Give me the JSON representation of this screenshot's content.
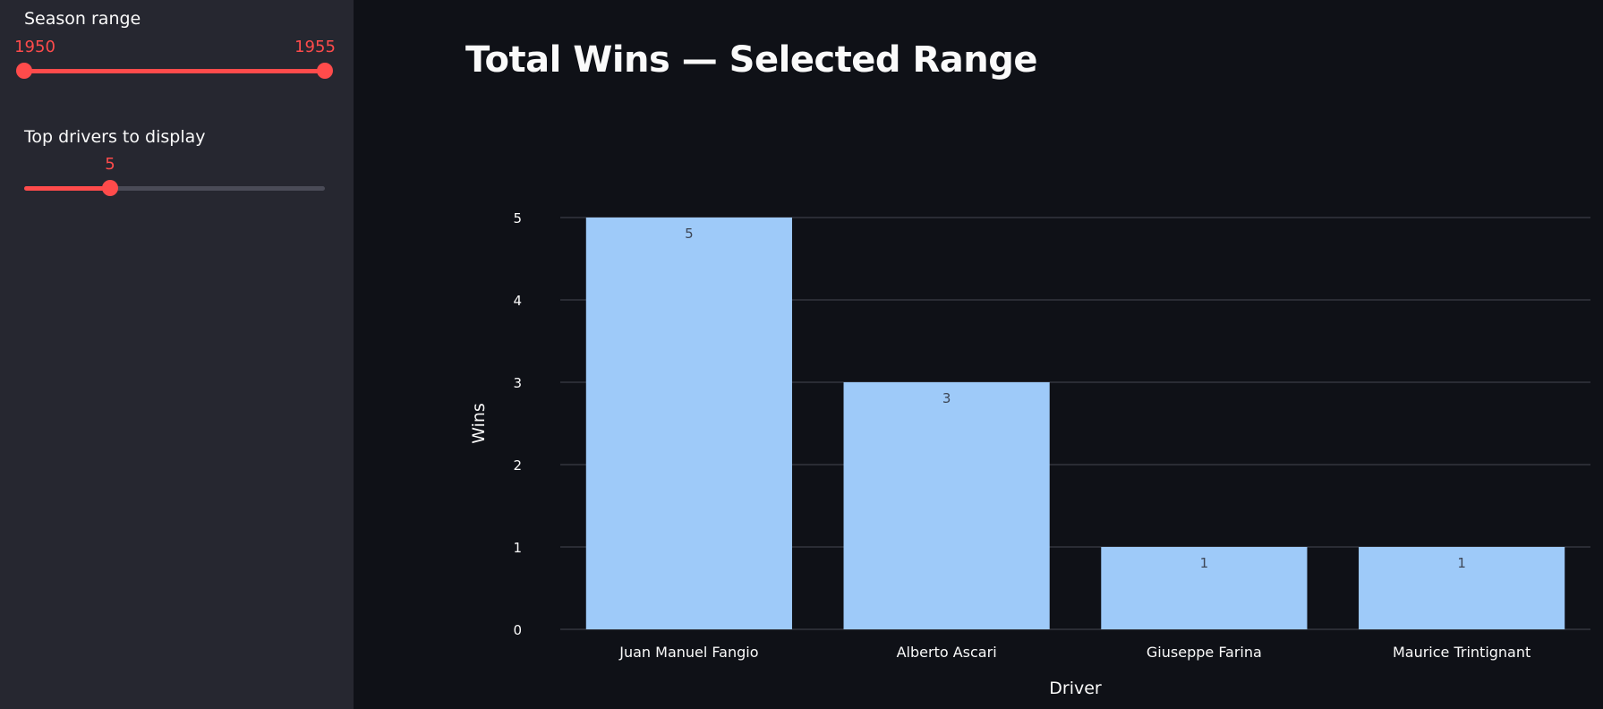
{
  "sidebar": {
    "season_range": {
      "label": "Season range",
      "min": 1950,
      "max": 1955,
      "low": "1950",
      "high": "1955"
    },
    "top_drivers": {
      "label": "Top drivers to display",
      "value": "5",
      "min": 1,
      "max": 15
    }
  },
  "main": {
    "title": "Total Wins — Selected Range"
  },
  "colors": {
    "accent": "#ff4b4b",
    "bar": "#9ecaf9",
    "grid": "#3a3c45",
    "sidebar_bg": "#262730",
    "main_bg": "#0f1117"
  },
  "chart_data": {
    "type": "bar",
    "categories": [
      "Juan Manuel Fangio",
      "Alberto Ascari",
      "Giuseppe Farina",
      "Maurice Trintignant"
    ],
    "values": [
      5,
      3,
      1,
      1
    ],
    "data_labels": [
      "5",
      "3",
      "1",
      "1"
    ],
    "xlabel": "Driver",
    "ylabel": "Wins",
    "ylim": [
      0,
      5
    ],
    "yticks": [
      "0",
      "1",
      "2",
      "3",
      "4",
      "5"
    ],
    "grid": true
  }
}
